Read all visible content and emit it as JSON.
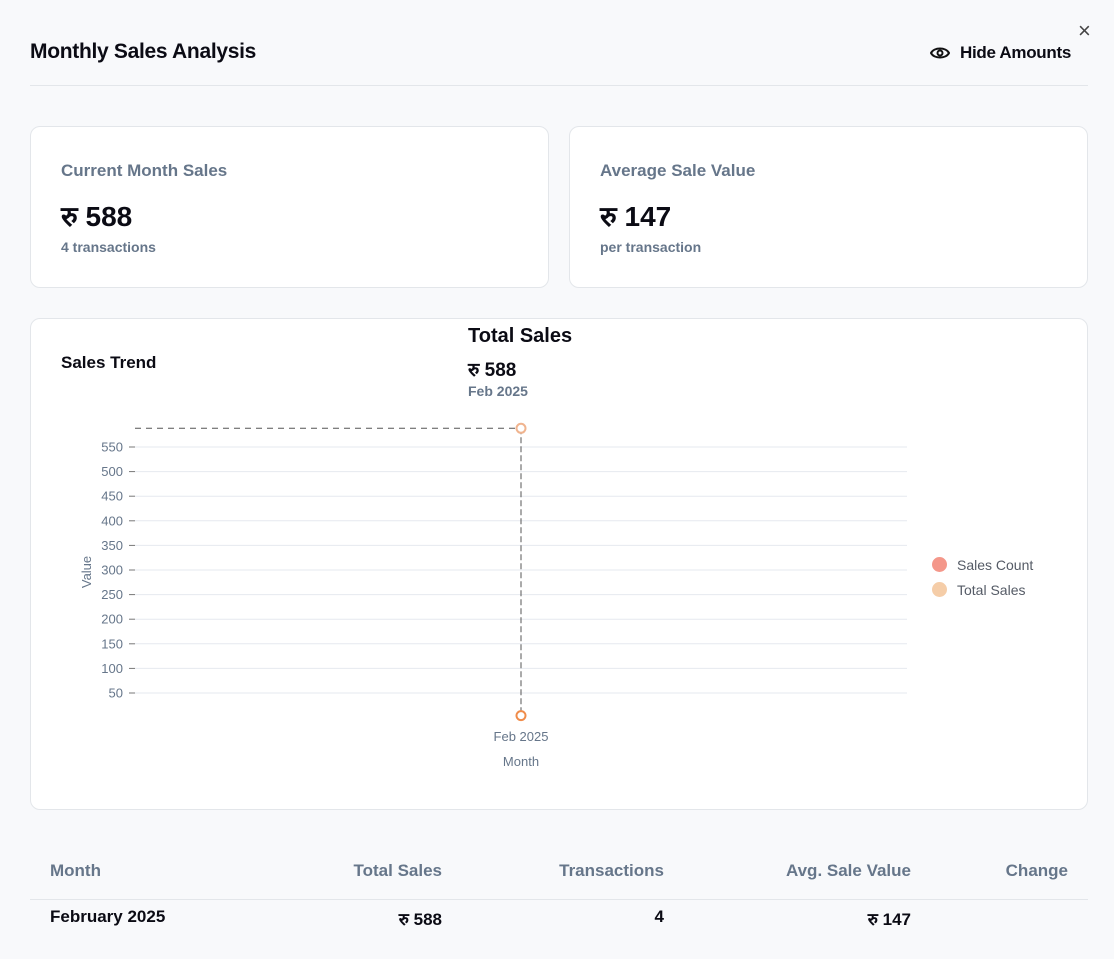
{
  "header": {
    "title": "Monthly Sales Analysis",
    "hide_amounts": "Hide Amounts",
    "close": "×"
  },
  "cards": [
    {
      "label": "Current Month Sales",
      "value": "रु 588",
      "sub": "4 transactions"
    },
    {
      "label": "Average Sale Value",
      "value": "रु 147",
      "sub": "per transaction"
    }
  ],
  "chart": {
    "title": "Sales Trend",
    "tooltip": {
      "title": "Total Sales",
      "value": "रु 588",
      "date": "Feb 2025"
    }
  },
  "chart_data": {
    "type": "line",
    "categories": [
      "Feb 2025"
    ],
    "series": [
      {
        "name": "Sales Count",
        "values": [
          4
        ],
        "color": "#f4978a"
      },
      {
        "name": "Total Sales",
        "values": [
          588
        ],
        "color": "#f5cda8"
      }
    ],
    "xlabel": "Month",
    "ylabel": "Value",
    "yticks": [
      50,
      100,
      150,
      200,
      250,
      300,
      350,
      400,
      450,
      500,
      550
    ],
    "grid": true,
    "legend": "right"
  },
  "table": {
    "headers": [
      "Month",
      "Total Sales",
      "Transactions",
      "Avg. Sale Value",
      "Change"
    ],
    "rows": [
      [
        "February 2025",
        "रु 588",
        "4",
        "रु 147",
        ""
      ]
    ]
  }
}
